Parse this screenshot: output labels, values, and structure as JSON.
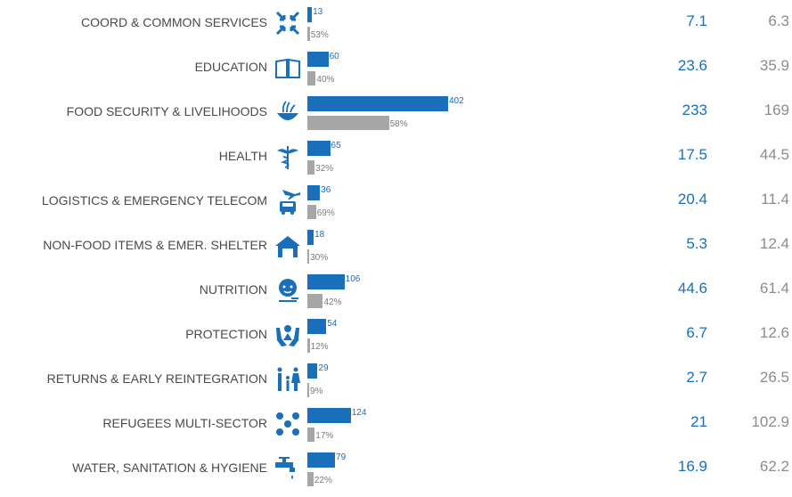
{
  "colors": {
    "primary": "#1a6fba",
    "secondary": "#a6a6a6"
  },
  "chart_data": {
    "type": "bar",
    "orientation": "horizontal",
    "xlim": [
      0,
      402
    ],
    "grid": false,
    "legend": "none",
    "categories": [
      "COORD & COMMON SERVICES",
      "EDUCATION",
      "FOOD SECURITY & LIVELIHOODS",
      "HEALTH",
      "LOGISTICS & EMERGENCY TELECOM",
      "NON-FOOD ITEMS & EMER. SHELTER",
      "NUTRITION",
      "PROTECTION",
      "RETURNS & EARLY REINTEGRATION",
      "REFUGEES MULTI-SECTOR",
      "WATER, SANITATION & HYGIENE"
    ],
    "icons": [
      "coordination-arrows-icon",
      "open-book-icon",
      "food-bowl-icon",
      "caduceus-icon",
      "plane-truck-icon",
      "shelter-house-icon",
      "nutrition-child-icon",
      "protection-hands-icon",
      "family-icon",
      "refugees-dots-icon",
      "water-tap-icon"
    ],
    "series": [
      {
        "values": [
          13,
          60,
          402,
          65,
          36,
          18,
          106,
          54,
          29,
          124,
          79
        ],
        "labels": [
          "13",
          "60",
          "402",
          "65",
          "36",
          "18",
          "106",
          "54",
          "29",
          "124",
          "79"
        ]
      },
      {
        "values": [
          53,
          40,
          58,
          32,
          69,
          30,
          42,
          12,
          9,
          17,
          22
        ],
        "labels": [
          "53%",
          "40%",
          "58%",
          "32%",
          "69%",
          "30%",
          "42%",
          "12%",
          "9%",
          "17%",
          "22%"
        ]
      }
    ],
    "right_columns": [
      {
        "values": [
          "7.1",
          "23.6",
          "233",
          "17.5",
          "20.4",
          "5.3",
          "44.6",
          "6.7",
          "2.7",
          "21",
          "16.9"
        ]
      },
      {
        "values": [
          "6.3",
          "35.9",
          "169",
          "44.5",
          "11.4",
          "12.4",
          "61.4",
          "12.6",
          "26.5",
          "102.9",
          "62.2"
        ]
      }
    ]
  }
}
